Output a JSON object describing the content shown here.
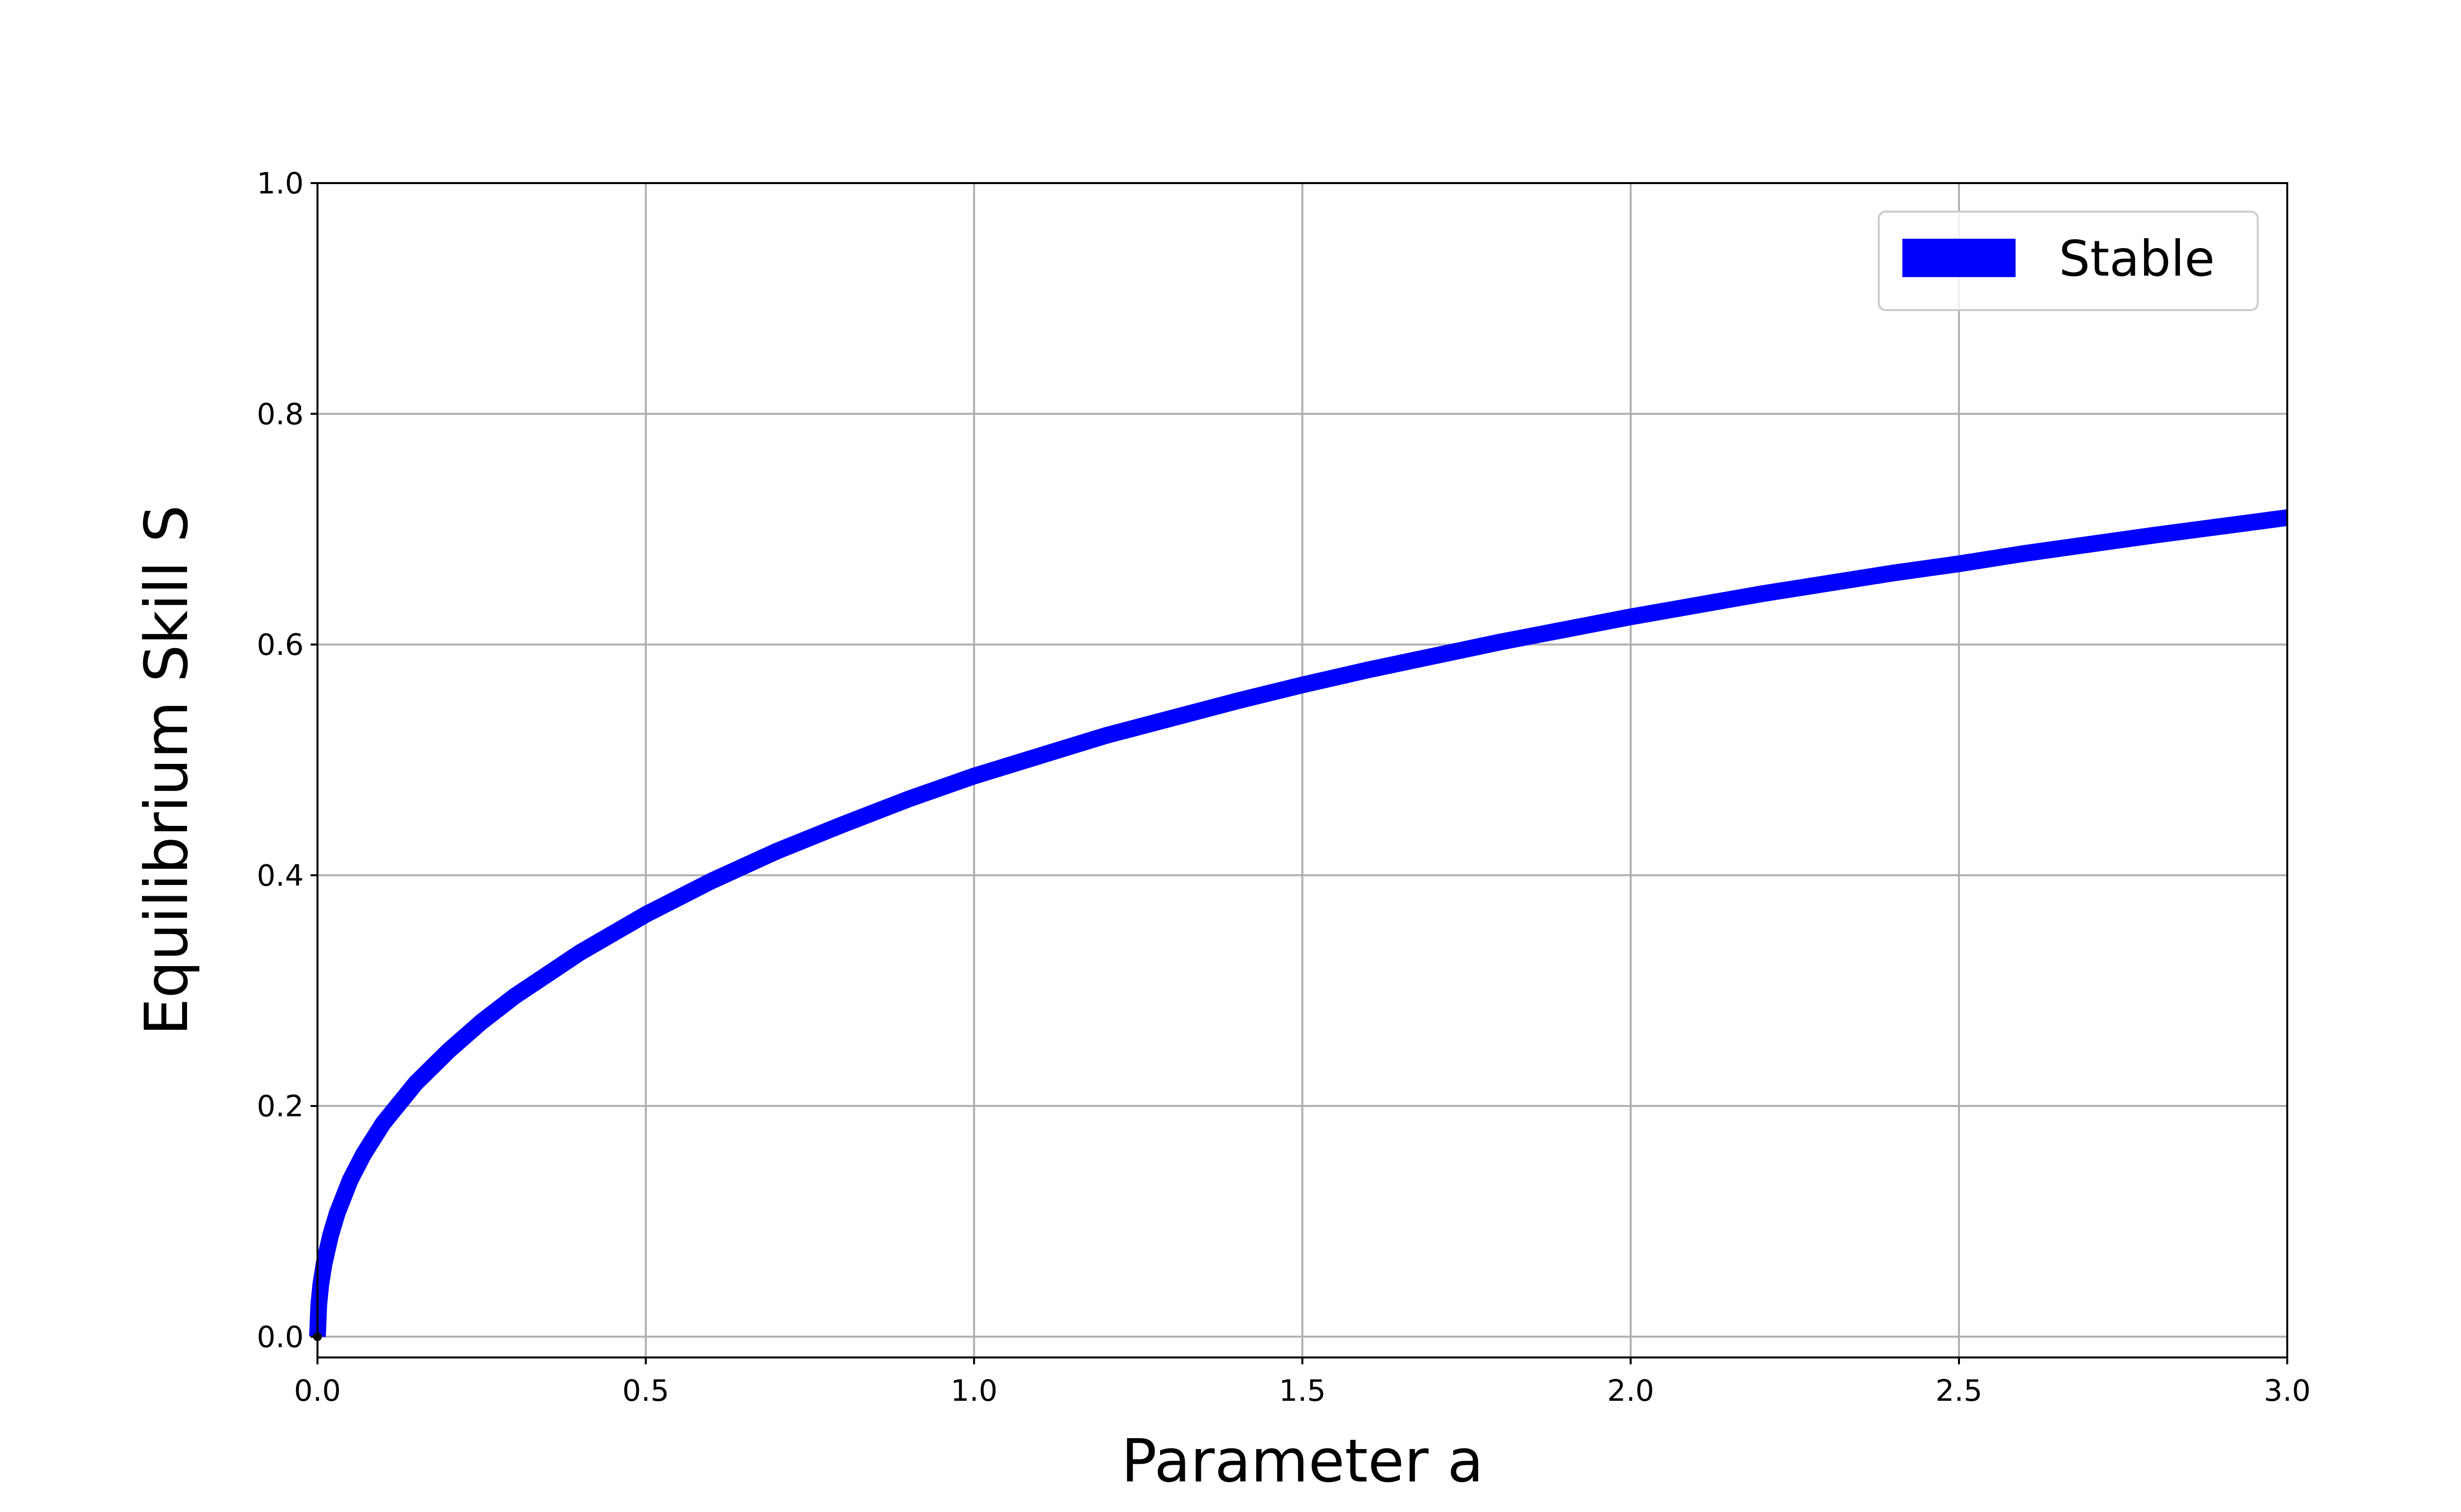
{
  "chart_data": {
    "type": "line",
    "title": "",
    "xlabel": "Parameter a",
    "ylabel": "Equilibrium Skill S",
    "xlim": [
      0.0,
      3.0
    ],
    "ylim": [
      0.0,
      1.0
    ],
    "x_ticks": [
      "0.0",
      "0.5",
      "1.0",
      "1.5",
      "2.0",
      "2.5",
      "3.0"
    ],
    "y_ticks": [
      "0.0",
      "0.2",
      "0.4",
      "0.6",
      "0.8",
      "1.0"
    ],
    "grid": true,
    "legend_position": "top-right",
    "series": [
      {
        "name": "Stable",
        "color": "#0000ff",
        "x": [
          0.0,
          0.002,
          0.005,
          0.01,
          0.02,
          0.03,
          0.05,
          0.07,
          0.1,
          0.15,
          0.2,
          0.25,
          0.3,
          0.4,
          0.5,
          0.6,
          0.7,
          0.8,
          0.9,
          1.0,
          1.2,
          1.4,
          1.5,
          1.6,
          1.8,
          2.0,
          2.2,
          2.4,
          2.5,
          2.6,
          2.8,
          3.0
        ],
        "y": [
          0.0,
          0.028,
          0.045,
          0.063,
          0.088,
          0.107,
          0.136,
          0.158,
          0.185,
          0.22,
          0.248,
          0.273,
          0.295,
          0.333,
          0.366,
          0.395,
          0.421,
          0.444,
          0.466,
          0.486,
          0.521,
          0.551,
          0.565,
          0.578,
          0.602,
          0.624,
          0.644,
          0.662,
          0.67,
          0.679,
          0.695,
          0.71
        ]
      }
    ]
  }
}
